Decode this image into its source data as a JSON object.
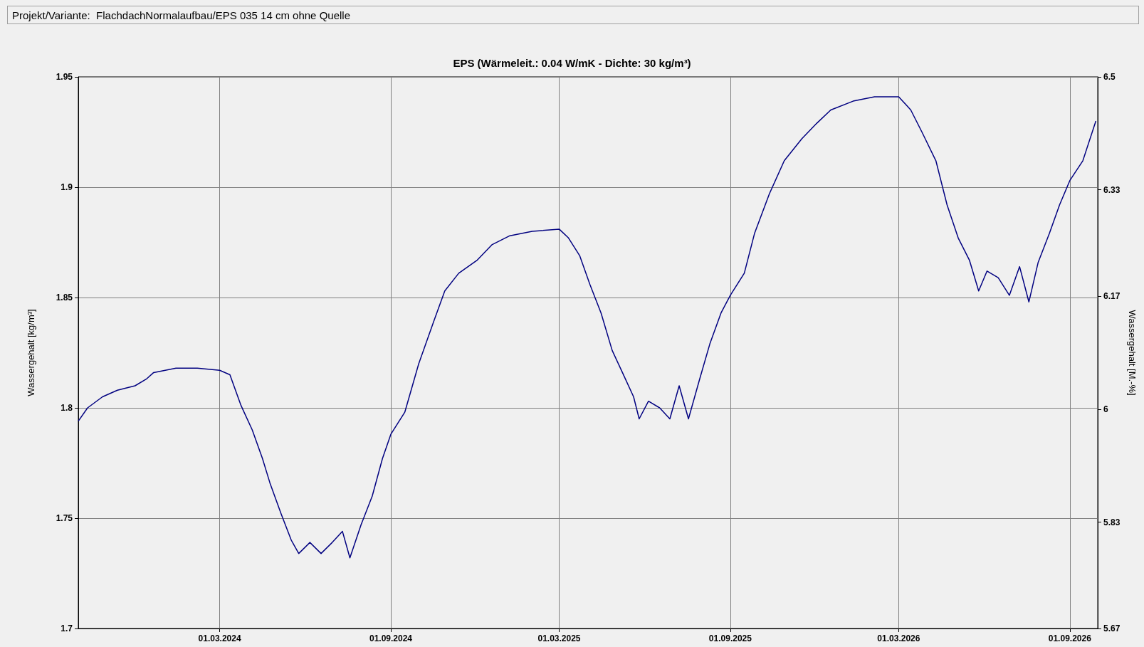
{
  "chart_data": {
    "type": "line",
    "title": "EPS (Wärmeleit.: 0.04 W/mK - Dichte: 30 kg/m³)",
    "ylabel": "Wassergehalt [kg/m³]",
    "y2label": "Wassergehalt [M.-%]",
    "annotations": [
      "Projekt/Variante:  FlachdachNormalaufbau/EPS 035 14 cm ohne Quelle"
    ],
    "x": [
      "2023-10-01",
      "2023-10-11",
      "2023-10-27",
      "2023-11-12",
      "2023-12-01",
      "2023-12-13",
      "2023-12-21",
      "2024-01-14",
      "2024-02-06",
      "2024-03-01",
      "2024-03-12",
      "2024-03-24",
      "2024-04-05",
      "2024-04-16",
      "2024-04-24",
      "2024-05-06",
      "2024-05-17",
      "2024-05-25",
      "2024-06-06",
      "2024-06-18",
      "2024-06-30",
      "2024-07-11",
      "2024-07-19",
      "2024-07-31",
      "2024-08-12",
      "2024-08-23",
      "2024-09-01",
      "2024-09-16",
      "2024-10-01",
      "2024-10-17",
      "2024-10-29",
      "2024-11-13",
      "2024-12-03",
      "2024-12-19",
      "2025-01-07",
      "2025-01-31",
      "2025-03-01",
      "2025-03-11",
      "2025-03-23",
      "2025-04-03",
      "2025-04-15",
      "2025-04-27",
      "2025-05-08",
      "2025-05-20",
      "2025-05-26",
      "2025-06-05",
      "2025-06-17",
      "2025-06-28",
      "2025-07-08",
      "2025-07-18",
      "2025-07-30",
      "2025-08-10",
      "2025-08-22",
      "2025-09-01",
      "2025-09-16",
      "2025-09-27",
      "2025-10-13",
      "2025-10-29",
      "2025-11-17",
      "2025-12-03",
      "2025-12-18",
      "2026-01-11",
      "2026-02-03",
      "2026-03-01",
      "2026-03-14",
      "2026-03-26",
      "2026-04-10",
      "2026-04-22",
      "2026-05-04",
      "2026-05-16",
      "2026-05-26",
      "2026-06-04",
      "2026-06-16",
      "2026-06-28",
      "2026-07-09",
      "2026-07-19",
      "2026-07-29",
      "2026-08-10",
      "2026-08-21",
      "2026-09-01",
      "2026-09-15",
      "2026-09-29"
    ],
    "series": [
      {
        "color": "#000080",
        "values": [
          1.794,
          1.8,
          1.805,
          1.808,
          1.81,
          1.813,
          1.816,
          1.818,
          1.818,
          1.817,
          1.815,
          1.801,
          1.79,
          1.777,
          1.766,
          1.752,
          1.74,
          1.734,
          1.739,
          1.734,
          1.739,
          1.744,
          1.732,
          1.747,
          1.76,
          1.777,
          1.788,
          1.798,
          1.82,
          1.839,
          1.853,
          1.861,
          1.867,
          1.874,
          1.878,
          1.88,
          1.881,
          1.877,
          1.869,
          1.856,
          1.843,
          1.826,
          1.816,
          1.805,
          1.795,
          1.803,
          1.8,
          1.795,
          1.81,
          1.795,
          1.813,
          1.829,
          1.843,
          1.851,
          1.861,
          1.879,
          1.897,
          1.912,
          1.922,
          1.929,
          1.935,
          1.939,
          1.941,
          1.941,
          1.935,
          1.925,
          1.912,
          1.892,
          1.877,
          1.867,
          1.853,
          1.862,
          1.859,
          1.851,
          1.864,
          1.848,
          1.866,
          1.879,
          1.892,
          1.903,
          1.912,
          1.93
        ]
      }
    ],
    "xlim": [
      "2023-10-01",
      "2026-10-01"
    ],
    "xticks": [
      {
        "value": "2024-03-01",
        "label": "01.03.2024"
      },
      {
        "value": "2024-09-01",
        "label": "01.09.2024"
      },
      {
        "value": "2025-03-01",
        "label": "01.03.2025"
      },
      {
        "value": "2025-09-01",
        "label": "01.09.2025"
      },
      {
        "value": "2026-03-01",
        "label": "01.03.2026"
      },
      {
        "value": "2026-09-01",
        "label": "01.09.2026"
      }
    ],
    "ylim": [
      1.7,
      1.95
    ],
    "yticks": [
      1.7,
      1.75,
      1.8,
      1.85,
      1.9,
      1.95
    ],
    "y2lim": [
      5.67,
      6.5
    ],
    "y2ticks": [
      5.67,
      5.83,
      6,
      6.17,
      6.33,
      6.5
    ],
    "grid": true,
    "marker": "none",
    "line_style": "solid"
  }
}
